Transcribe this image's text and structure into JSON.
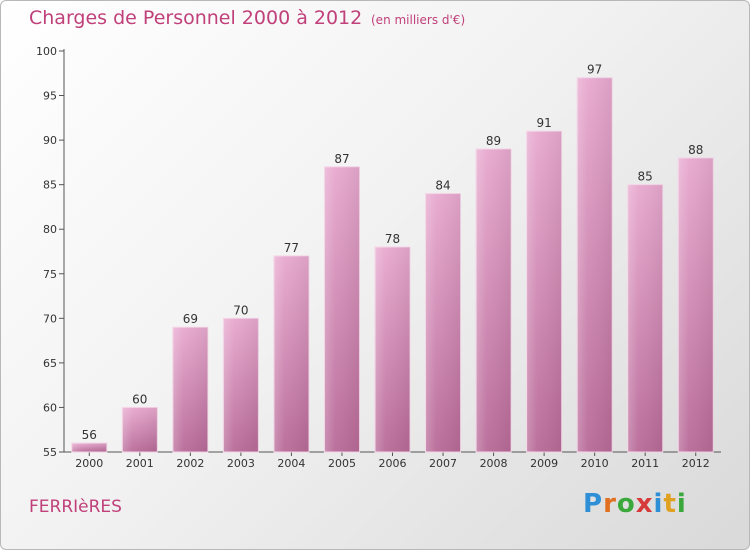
{
  "header": {
    "title": "Charges de Personnel 2000 à 2012",
    "subtitle": "(en milliers d'€)"
  },
  "footer": {
    "place": "FERRIèRES",
    "brand": "Proxiti"
  },
  "colors": {
    "bar_top": "#e8a9cf",
    "bar_bottom": "#b86a98",
    "text_accent": "#c0407a"
  },
  "chart_data": {
    "type": "bar",
    "title": "Charges de Personnel 2000 à 2012",
    "subtitle": "(en milliers d'€)",
    "categories": [
      "2000",
      "2001",
      "2002",
      "2003",
      "2004",
      "2005",
      "2006",
      "2007",
      "2008",
      "2009",
      "2010",
      "2011",
      "2012"
    ],
    "values": [
      56,
      60,
      69,
      70,
      77,
      87,
      78,
      84,
      89,
      91,
      97,
      85,
      88
    ],
    "ylim": [
      55,
      100
    ],
    "yticks": [
      55,
      60,
      65,
      70,
      75,
      80,
      85,
      90,
      95,
      100
    ],
    "grid": false,
    "legend": "none"
  }
}
